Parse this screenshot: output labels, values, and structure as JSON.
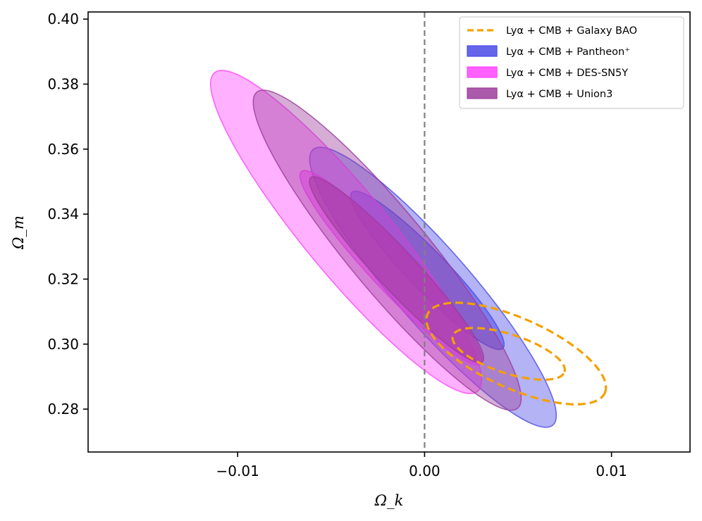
{
  "chart_data": {
    "type": "contour",
    "title": "",
    "xlabel": "Ω_k",
    "ylabel": "Ω_m",
    "xlim": [
      -0.018,
      0.0142
    ],
    "ylim": [
      0.2668,
      0.4022
    ],
    "xticks": [
      -0.01,
      0.0,
      0.01
    ],
    "xtick_labels": [
      "−0.01",
      "0.00",
      "0.01"
    ],
    "yticks": [
      0.28,
      0.3,
      0.32,
      0.34,
      0.36,
      0.38,
      0.4
    ],
    "ytick_labels": [
      "0.28",
      "0.30",
      "0.32",
      "0.34",
      "0.36",
      "0.38",
      "0.40"
    ],
    "reference_line": {
      "orientation": "vertical",
      "x": 0.0,
      "style": "dashed",
      "color": "#808080"
    },
    "legend_position": "top-right",
    "series": [
      {
        "name": "Lyα + CMB + Pantheon+",
        "legend_label": "Lyα + CMB + Pantheon⁺",
        "style": "filled",
        "color": "#4a4ae8",
        "contours": [
          {
            "level": "95%",
            "center": [
              0.00045,
              0.3175
            ],
            "semi_major": 0.00978,
            "semi_minor": 0.00204,
            "angle_deg": -49.0
          },
          {
            "level": "68%",
            "center": [
              0.00015,
              0.3227
            ],
            "semi_major": 0.00581,
            "semi_minor": 0.00104,
            "angle_deg": -46.0
          }
        ]
      },
      {
        "name": "Lyα + CMB + DES-SN5Y",
        "legend_label": "Lyα + CMB + DES-SN5Y",
        "style": "filled",
        "color": "#ff44ff",
        "contours": [
          {
            "level": "95%",
            "center": [
              -0.0042,
              0.3345
            ],
            "semi_major": 0.01106,
            "semi_minor": 0.00227,
            "angle_deg": -50.5
          },
          {
            "level": "68%",
            "center": [
              -0.0018,
              0.3235
            ],
            "semi_major": 0.00704,
            "semi_minor": 0.00114,
            "angle_deg": -47.0
          }
        ]
      },
      {
        "name": "Lyα + CMB + Union3",
        "legend_label": "Lyα + CMB + Union3",
        "style": "filled",
        "color": "#9c3c9c",
        "contours": [
          {
            "level": "95%",
            "center": [
              -0.002,
              0.3289
            ],
            "semi_major": 0.01097,
            "semi_minor": 0.00213,
            "angle_deg": -50.5
          },
          {
            "level": "68%",
            "center": [
              -0.0015,
              0.3229
            ],
            "semi_major": 0.00674,
            "semi_minor": 0.00106,
            "angle_deg": -47.0
          }
        ]
      },
      {
        "name": "Lyα + CMB + Galaxy BAO",
        "legend_label": "Lyα + CMB + Galaxy BAO",
        "style": "dashed",
        "color": "#f5a000",
        "contours": [
          {
            "level": "95%",
            "center": [
              0.0049,
              0.2971
            ],
            "semi_major": 0.00519,
            "semi_minor": 0.00188,
            "angle_deg": -24.0
          },
          {
            "level": "68%",
            "center": [
              0.0045,
              0.297
            ],
            "semi_major": 0.00314,
            "semi_minor": 0.00104,
            "angle_deg": -18.0
          }
        ]
      }
    ],
    "legend_order": [
      "Lyα + CMB + Galaxy BAO",
      "Lyα + CMB + Pantheon+",
      "Lyα + CMB + DES-SN5Y",
      "Lyα + CMB + Union3"
    ]
  }
}
